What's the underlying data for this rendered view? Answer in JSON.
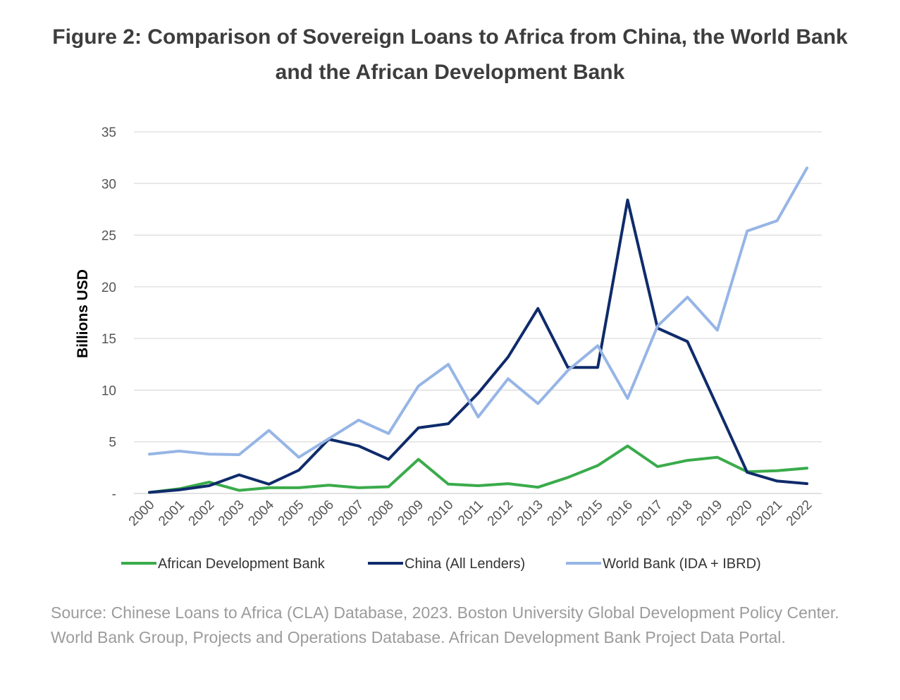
{
  "chart_data": {
    "type": "line",
    "title_line1": "Figure 2: Comparison of Sovereign Loans to Africa from China, the World Bank",
    "title_line2": "and the African Development Bank",
    "xlabel": "",
    "ylabel": "Billions USD",
    "ylim": [
      0,
      35
    ],
    "y_ticks": [
      0,
      5,
      10,
      15,
      20,
      25,
      30,
      35
    ],
    "y_tick_labels": [
      "-",
      "5",
      "10",
      "15",
      "20",
      "25",
      "30",
      "35"
    ],
    "grid": true,
    "legend_position": "bottom",
    "x": [
      "2000",
      "2001",
      "2002",
      "2003",
      "2004",
      "2005",
      "2006",
      "2007",
      "2008",
      "2009",
      "2010",
      "2011",
      "2012",
      "2013",
      "2014",
      "2015",
      "2016",
      "2017",
      "2018",
      "2019",
      "2020",
      "2021",
      "2022"
    ],
    "series": [
      {
        "name": "African Development Bank",
        "color": "#3aab4b",
        "values": [
          0.1,
          0.45,
          1.1,
          0.3,
          0.55,
          0.55,
          0.8,
          0.55,
          0.65,
          3.3,
          0.9,
          0.75,
          0.95,
          0.6,
          1.55,
          2.7,
          4.6,
          2.6,
          3.2,
          3.5,
          2.1,
          2.2,
          2.45
        ]
      },
      {
        "name": "China (All Lenders)",
        "color": "#0f2b6b",
        "values": [
          0.1,
          0.35,
          0.75,
          1.8,
          0.9,
          2.25,
          5.25,
          4.6,
          3.3,
          6.35,
          6.75,
          9.7,
          13.2,
          17.9,
          12.2,
          12.2,
          28.4,
          16.0,
          14.7,
          8.4,
          2.05,
          1.2,
          0.95
        ]
      },
      {
        "name": "World Bank (IDA + IBRD)",
        "color": "#96b5e6",
        "values": [
          3.8,
          4.1,
          3.8,
          3.75,
          6.1,
          3.5,
          5.3,
          7.1,
          5.8,
          10.4,
          12.5,
          7.4,
          11.1,
          8.7,
          11.9,
          14.3,
          9.2,
          16.2,
          19.0,
          15.8,
          25.4,
          26.4,
          31.5
        ]
      }
    ],
    "source": "Source: Chinese Loans to Africa (CLA) Database, 2023. Boston University Global Development Policy Center. World Bank Group, Projects and Operations Database. African Development Bank Project Data Portal."
  }
}
